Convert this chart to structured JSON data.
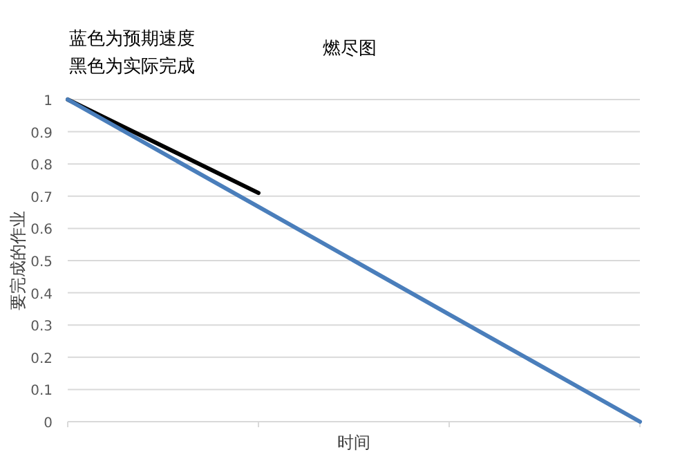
{
  "chart_data": {
    "type": "line",
    "title": "燃尽图",
    "xlabel": "时间",
    "ylabel": "要完成的作业",
    "annotations": [
      "蓝色为预期速度",
      "黑色为实际完成"
    ],
    "categories": [
      null,
      null,
      null,
      null
    ],
    "series": [
      {
        "color": "#4a7ebb",
        "values": [
          1,
          0.667,
          0.333,
          0
        ]
      },
      {
        "color": "#000000",
        "values": [
          1,
          0.71,
          null,
          null
        ]
      }
    ],
    "ylim": [
      0,
      1
    ],
    "yticks": [
      0,
      0.1,
      0.2,
      0.3,
      0.4,
      0.5,
      0.6,
      0.7,
      0.8,
      0.9,
      1
    ],
    "grid": "y"
  }
}
